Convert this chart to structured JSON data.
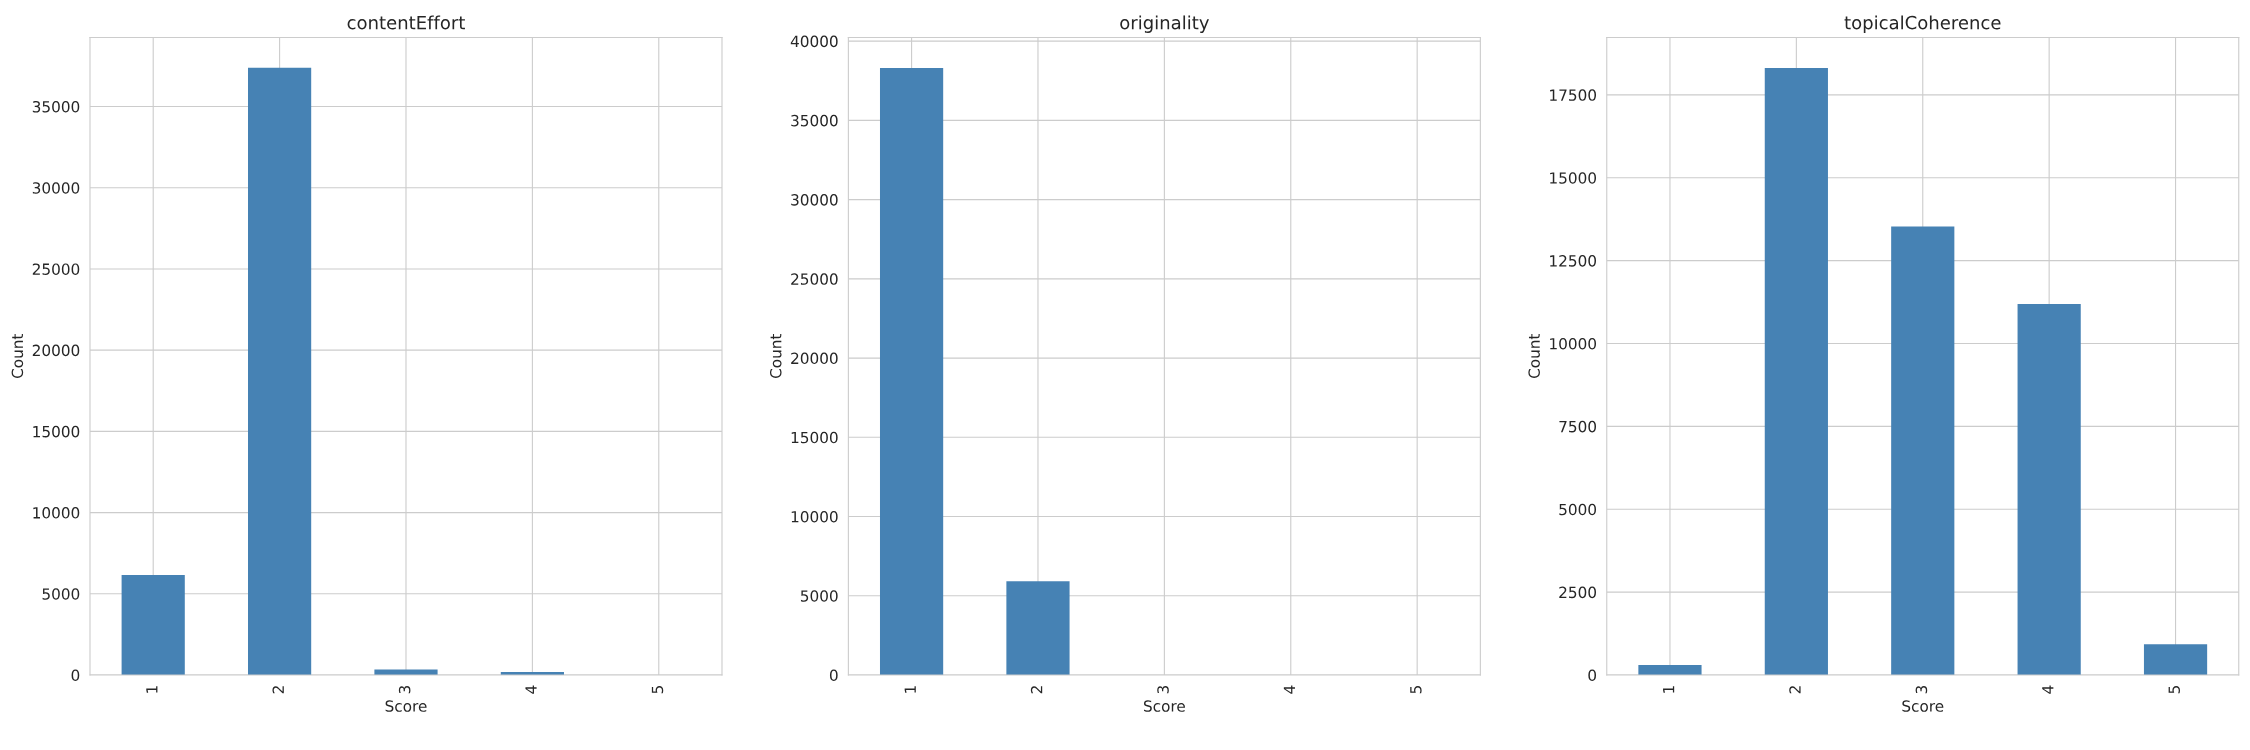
{
  "chart_data": [
    {
      "type": "bar",
      "title": "contentEffort",
      "xlabel": "Score",
      "ylabel": "Count",
      "categories": [
        "1",
        "2",
        "3",
        "4",
        "5"
      ],
      "values": [
        6160,
        37380,
        340,
        180,
        0
      ],
      "color": "#4682b4",
      "ylim": [
        0,
        39250
      ],
      "yticks": [
        0,
        5000,
        10000,
        15000,
        20000,
        25000,
        30000,
        35000
      ],
      "grid": true
    },
    {
      "type": "bar",
      "title": "originality",
      "xlabel": "Score",
      "ylabel": "Count",
      "categories": [
        "1",
        "2",
        "3",
        "4",
        "5"
      ],
      "values": [
        38310,
        5910,
        0,
        0,
        0
      ],
      "color": "#4682b4",
      "ylim": [
        0,
        40230
      ],
      "yticks": [
        0,
        5000,
        10000,
        15000,
        20000,
        25000,
        30000,
        35000,
        40000
      ],
      "grid": true
    },
    {
      "type": "bar",
      "title": "topicalCoherence",
      "xlabel": "Score",
      "ylabel": "Count",
      "categories": [
        "1",
        "2",
        "3",
        "4",
        "5"
      ],
      "values": [
        300,
        18310,
        13530,
        11190,
        930
      ],
      "color": "#4682b4",
      "ylim": [
        0,
        19230
      ],
      "yticks": [
        0,
        2500,
        5000,
        7500,
        10000,
        12500,
        15000,
        17500
      ],
      "grid": true
    }
  ]
}
